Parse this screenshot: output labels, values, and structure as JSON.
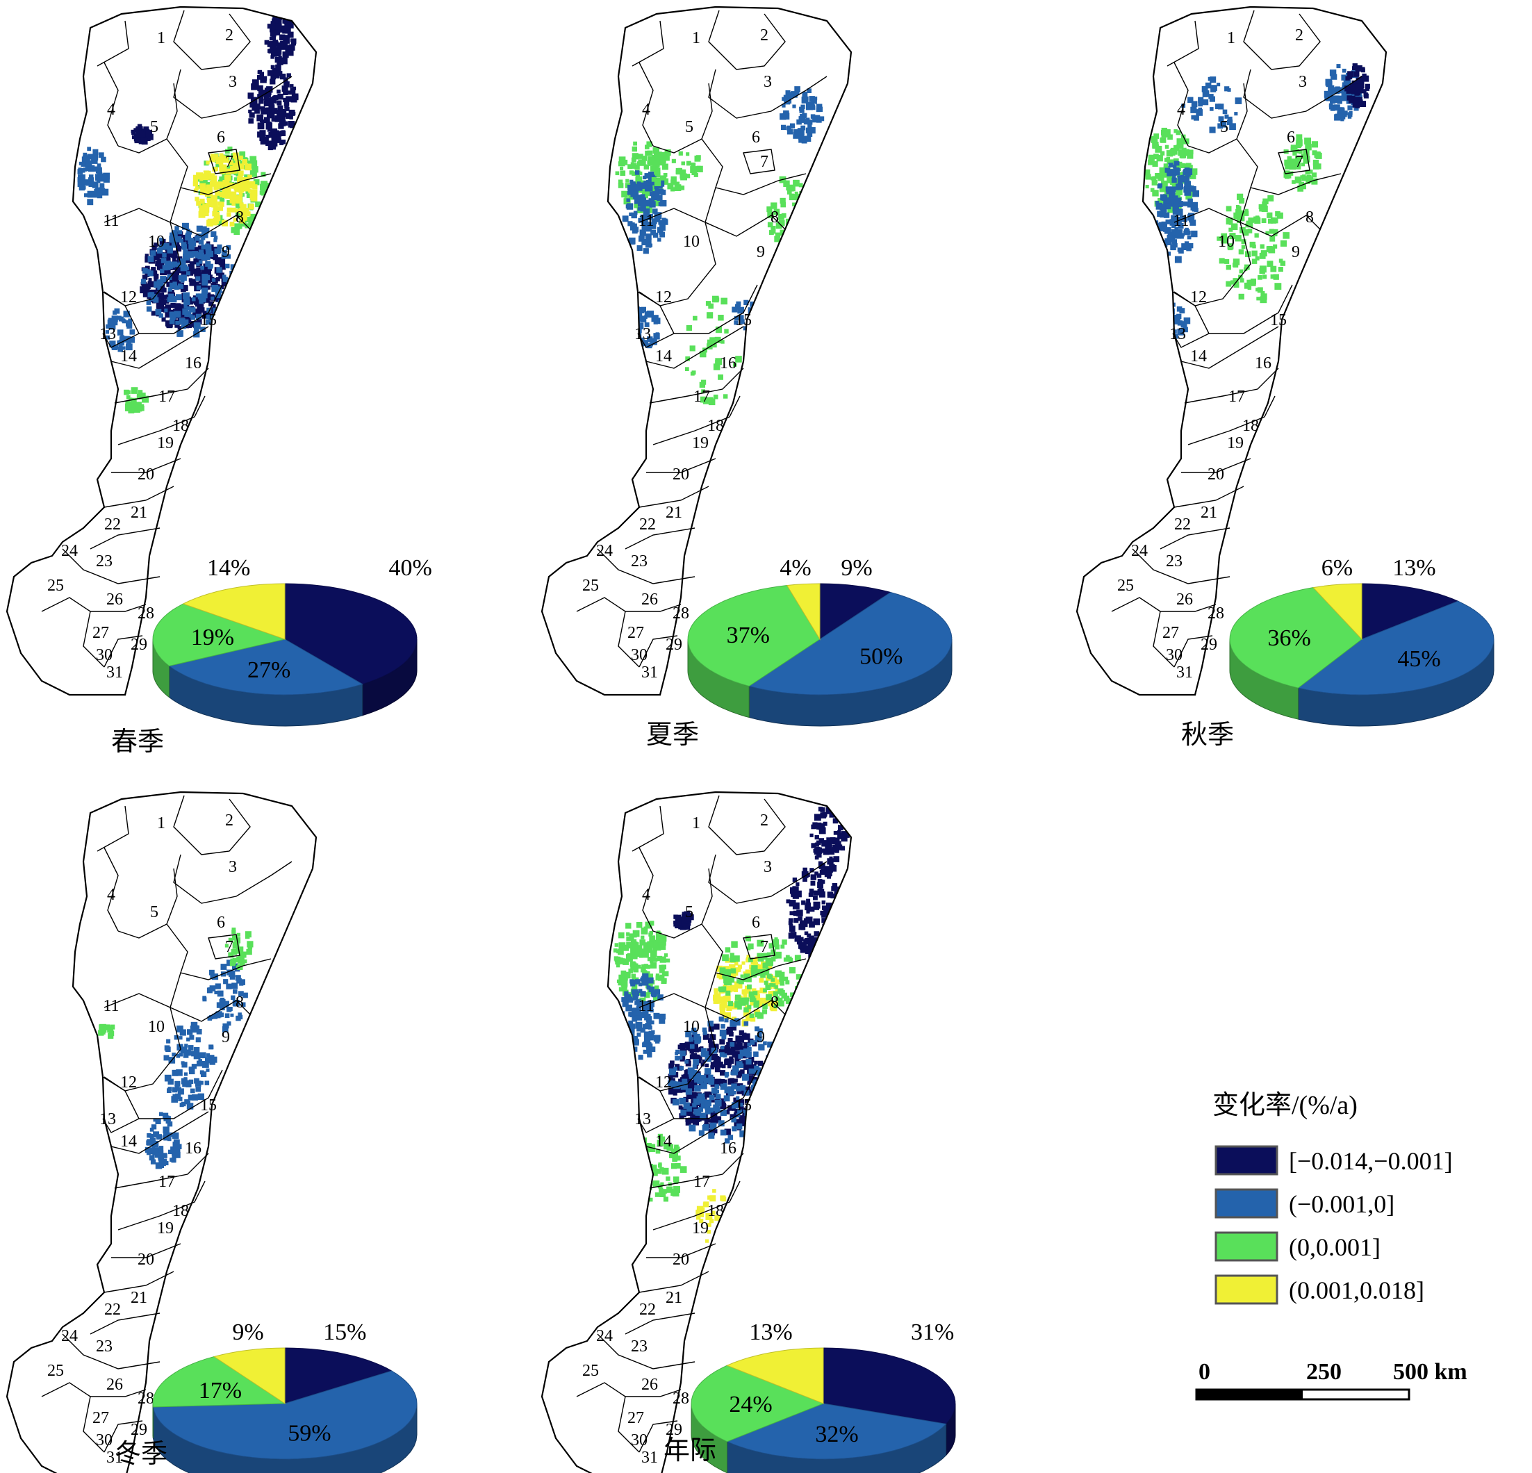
{
  "region_numbers": [
    "1",
    "2",
    "3",
    "4",
    "5",
    "6",
    "7",
    "8",
    "9",
    "10",
    "11",
    "12",
    "13",
    "14",
    "15",
    "16",
    "17",
    "18",
    "19",
    "20",
    "21",
    "22",
    "23",
    "24",
    "25",
    "26",
    "27",
    "28",
    "29",
    "30",
    "31"
  ],
  "classes": [
    {
      "label": "[−0.014,−0.001]",
      "color": "#0b0e5a"
    },
    {
      "label": "(−0.001,0]",
      "color": "#2463ac"
    },
    {
      "label": "(0,0.001]",
      "color": "#59e05a"
    },
    {
      "label": "(0.001,0.018]",
      "color": "#f0f035"
    }
  ],
  "panels": [
    {
      "title": "春季",
      "percentages": [
        40,
        27,
        19,
        14
      ],
      "labels": [
        "40%",
        "27%",
        "19%",
        "14%"
      ]
    },
    {
      "title": "夏季",
      "percentages": [
        9,
        50,
        37,
        4
      ],
      "labels": [
        "9%",
        "50%",
        "37%",
        "4%"
      ]
    },
    {
      "title": "秋季",
      "percentages": [
        13,
        45,
        36,
        6
      ],
      "labels": [
        "13%",
        "45%",
        "36%",
        "6%"
      ]
    },
    {
      "title": "冬季",
      "percentages": [
        15,
        59,
        17,
        9
      ],
      "labels": [
        "15%",
        "59%",
        "17%",
        "9%"
      ]
    },
    {
      "title": "年际",
      "percentages": [
        31,
        32,
        24,
        13
      ],
      "labels": [
        "31%",
        "32%",
        "24%",
        "13%"
      ]
    }
  ],
  "legend": {
    "title": "变化率/(%/a)"
  },
  "scale_bar": {
    "labels": [
      "0",
      "250",
      "500 km"
    ]
  }
}
